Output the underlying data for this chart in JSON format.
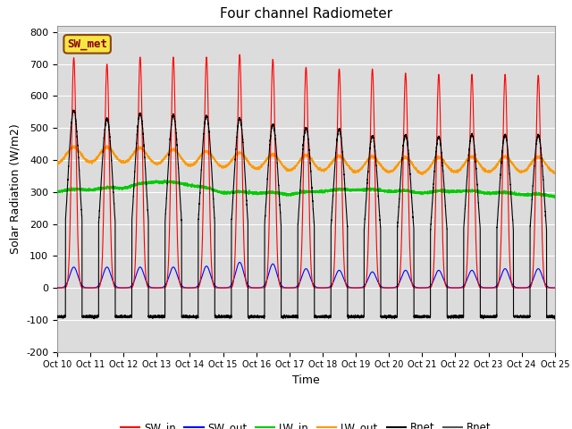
{
  "title": "Four channel Radiometer",
  "xlabel": "Time",
  "ylabel": "Solar Radiation (W/m2)",
  "ylim": [
    -200,
    820
  ],
  "yticks": [
    -200,
    -100,
    0,
    100,
    200,
    300,
    400,
    500,
    600,
    700,
    800
  ],
  "n_days": 15,
  "annotation_text": "SW_met",
  "annotation_bg": "#f5e642",
  "annotation_border": "#8B4513",
  "bg_color": "#dcdcdc",
  "colors": {
    "SW_in": "#ff0000",
    "SW_out": "#0000ff",
    "LW_in": "#00cc00",
    "LW_out": "#ff9900",
    "Rnet": "#000000",
    "Rnet2": "#555555"
  },
  "xtick_labels": [
    "Oct 10",
    "Oct 11",
    "Oct 12",
    "Oct 13",
    "Oct 14",
    "Oct 15",
    "Oct 16",
    "Oct 17",
    "Oct 18",
    "Oct 19",
    "Oct 20",
    "Oct 21",
    "Oct 22",
    "Oct 23",
    "Oct 24",
    "Oct 25"
  ],
  "xtick_positions": [
    0,
    1,
    2,
    3,
    4,
    5,
    6,
    7,
    8,
    9,
    10,
    11,
    12,
    13,
    14,
    15
  ]
}
